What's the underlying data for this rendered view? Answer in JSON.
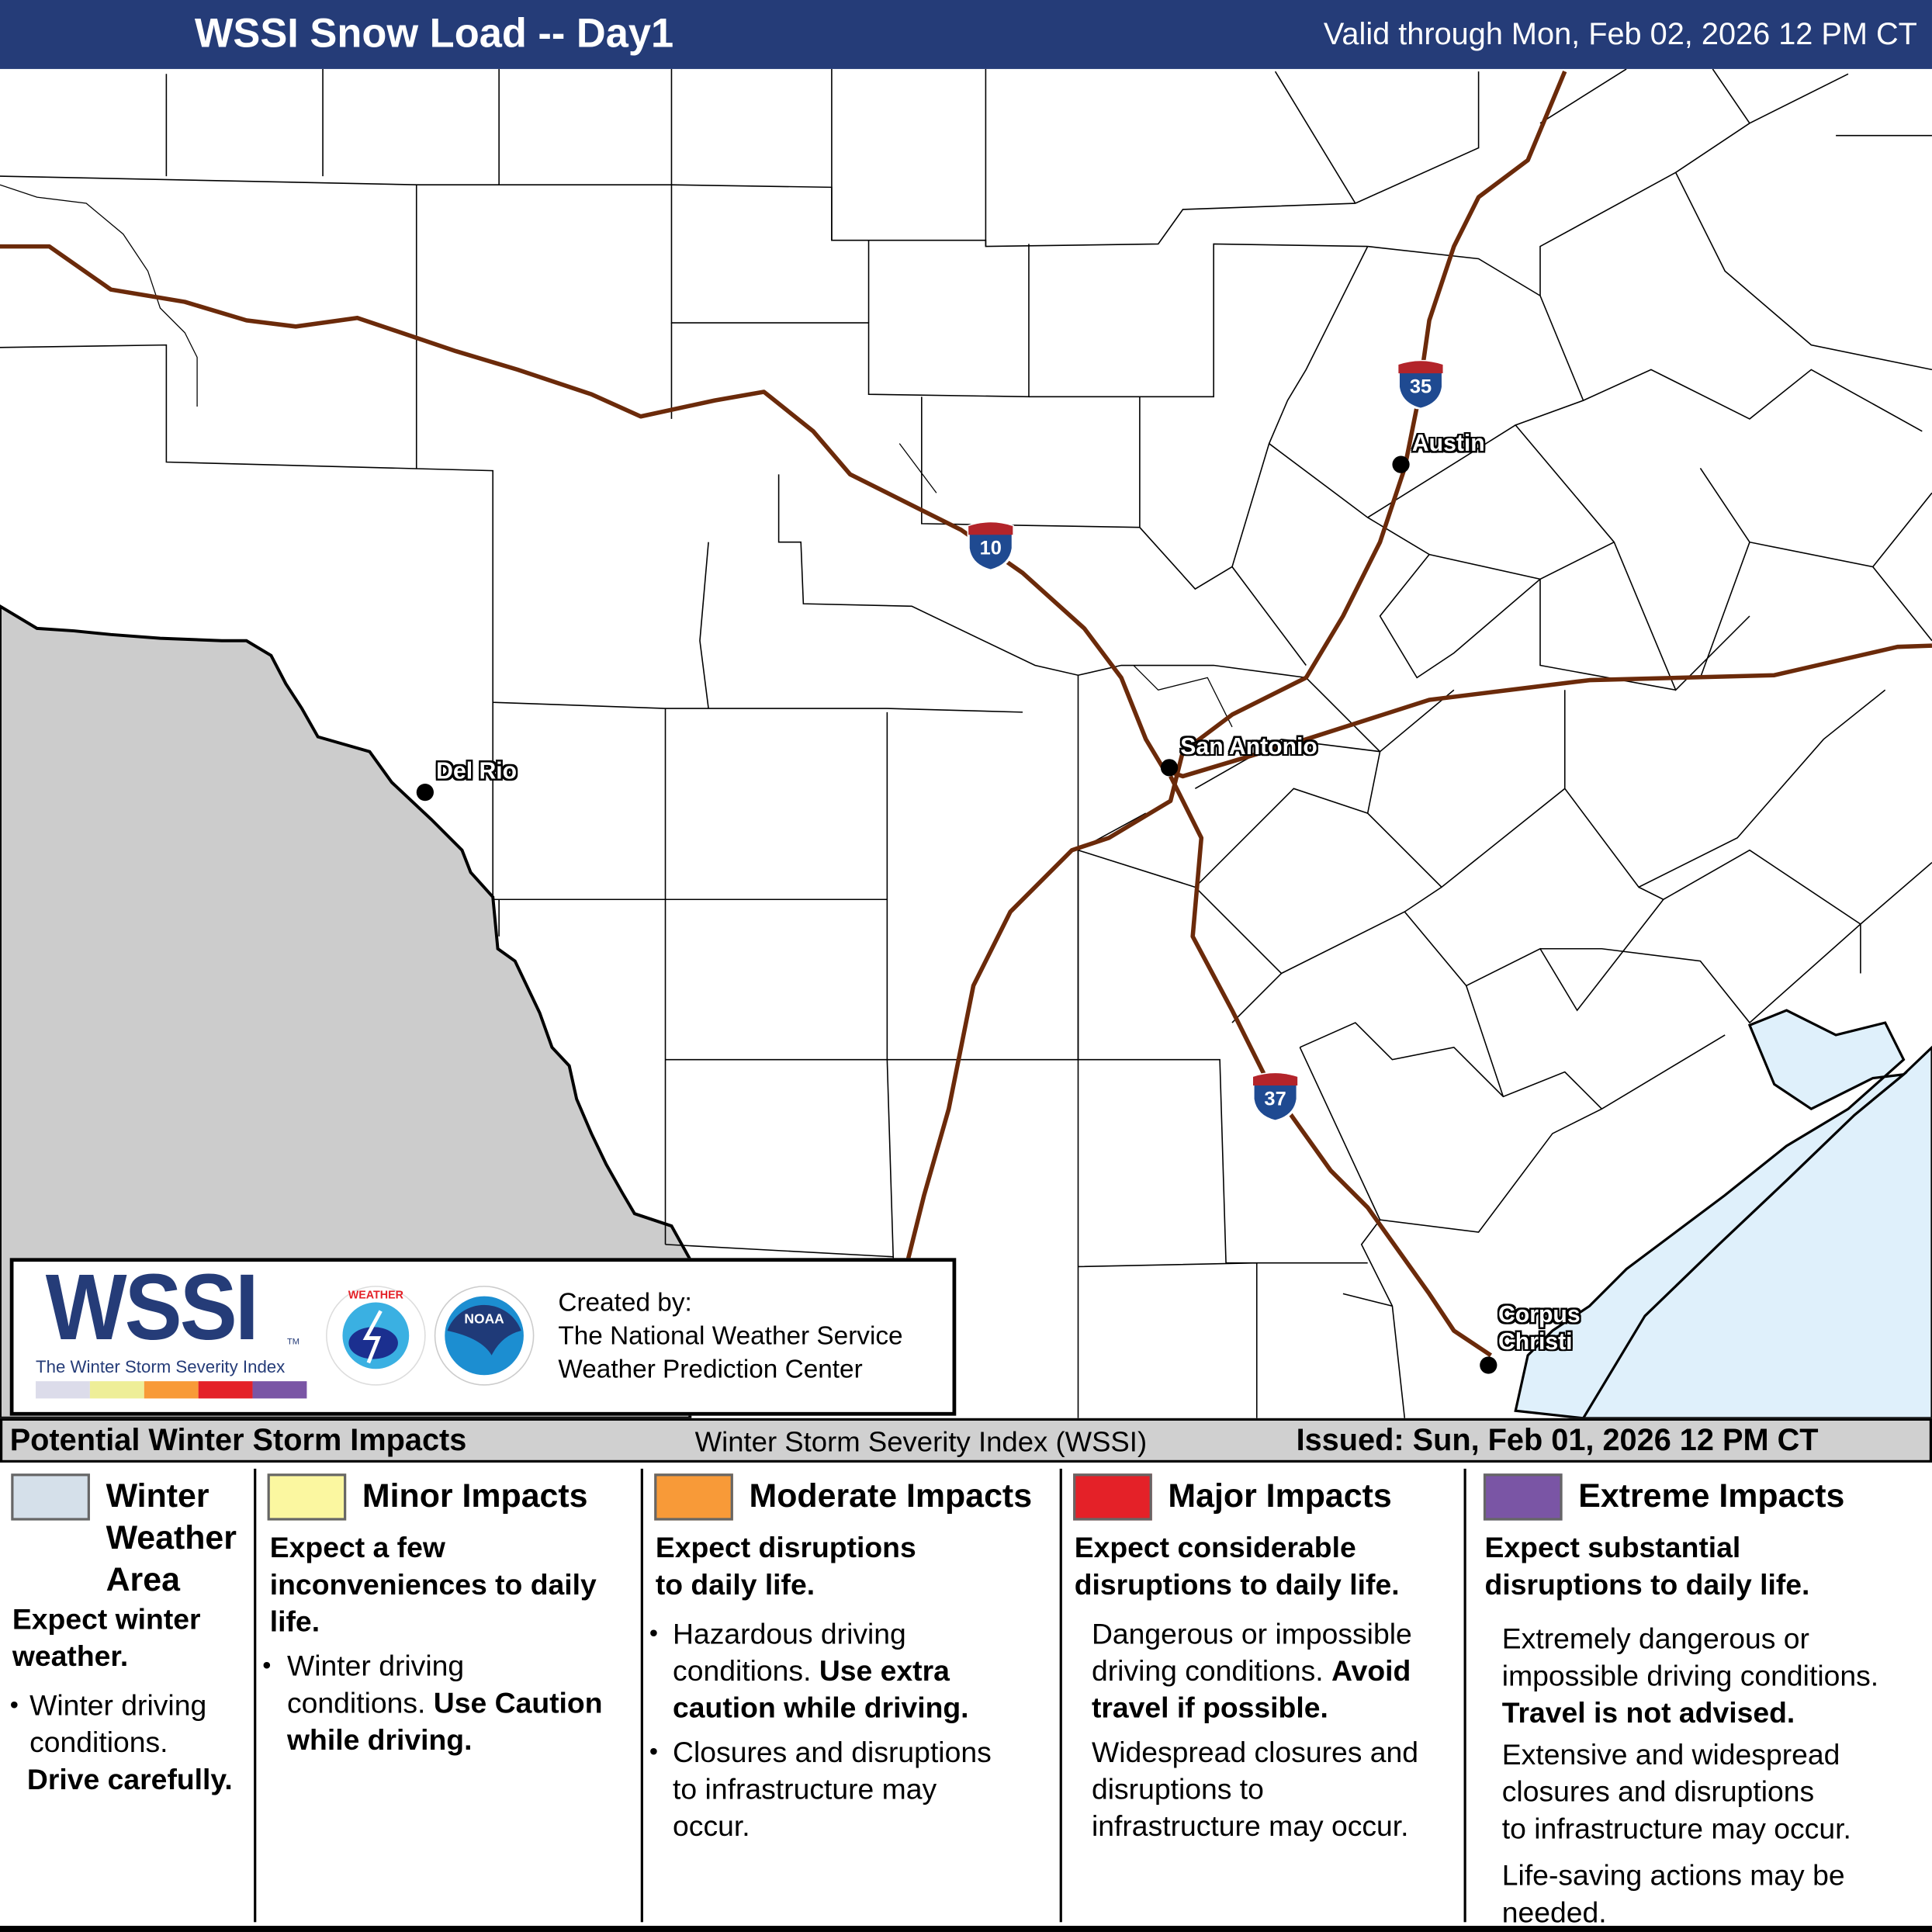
{
  "header": {
    "title": "WSSI Snow Load -- Day1",
    "valid": "Valid through Mon, Feb 02, 2026 12 PM CT"
  },
  "map": {
    "colors": {
      "outside": "#cccccc",
      "water": "#dff0fb",
      "roads": "#6b2a0a",
      "header": "#253c78"
    },
    "cities": [
      {
        "name": "Austin"
      },
      {
        "name": "San Antonio"
      },
      {
        "name": "Del Rio"
      },
      {
        "name": "Corpus",
        "name2": "Christi"
      }
    ],
    "interstates": [
      {
        "number": "10"
      },
      {
        "number": "35"
      },
      {
        "number": "37"
      }
    ]
  },
  "logo": {
    "wordmark": "WSSI",
    "tm": "TM",
    "subtitle": "The Winter Storm Severity Index",
    "bar_colors": [
      "#dcdcea",
      "#eeee98",
      "#f89a38",
      "#e42128",
      "#7a55a5"
    ],
    "nws_seal": "NATIONAL WEATHER SERVICE",
    "noaa_seal": "NOAA",
    "created_by": "Created by:",
    "org1": "The National Weather Service",
    "org2": "Weather Prediction Center"
  },
  "impact_header": {
    "left": "Potential Winter Storm Impacts",
    "middle": "Winter Storm Severity Index (WSSI)",
    "right": "Issued: Sun, Feb 01, 2026 12 PM CT"
  },
  "legend": [
    {
      "color": "#d5e0ea",
      "title1": "Winter",
      "title2": "Weather",
      "title3": "Area",
      "sub1": "Expect winter",
      "sub2": "weather.",
      "b1": "Winter driving",
      "b2": "conditions.",
      "b3": "Drive carefully."
    },
    {
      "color": "#fbf7a0",
      "title": "Minor Impacts",
      "sub1": "Expect a few",
      "sub2": "inconveniences to daily",
      "sub3": "life.",
      "b1": "Winter driving",
      "b2": "conditions.",
      "b2b": "Use Caution",
      "b3": "while driving."
    },
    {
      "color": "#f89a38",
      "title": "Moderate Impacts",
      "sub1": "Expect disruptions",
      "sub2": "to daily life.",
      "b1": "Hazardous driving",
      "b2": "conditions.",
      "b2b": "Use extra",
      "b3": "caution while driving.",
      "c1": "Closures and disruptions",
      "c2": "to infrastructure may",
      "c3": "occur."
    },
    {
      "color": "#e42128",
      "title": "Major Impacts",
      "sub1": "Expect considerable",
      "sub2": "disruptions to daily life.",
      "b1": "Dangerous or impossible",
      "b2": "driving conditions.",
      "b2b": "Avoid",
      "b3": "travel if possible.",
      "c1": "Widespread closures and",
      "c2": "disruptions to",
      "c3": "infrastructure may occur."
    },
    {
      "color": "#7a55a5",
      "title": "Extreme Impacts",
      "sub1": "Expect substantial",
      "sub2": "disruptions to daily life.",
      "b1": "Extremely dangerous or",
      "b2": "impossible driving conditions.",
      "b3": "Travel is not advised.",
      "c1": "Extensive and widespread",
      "c2": "closures and disruptions",
      "c3": "to infrastructure may occur.",
      "d1": "Life-saving actions may be",
      "d2": "needed."
    }
  ]
}
